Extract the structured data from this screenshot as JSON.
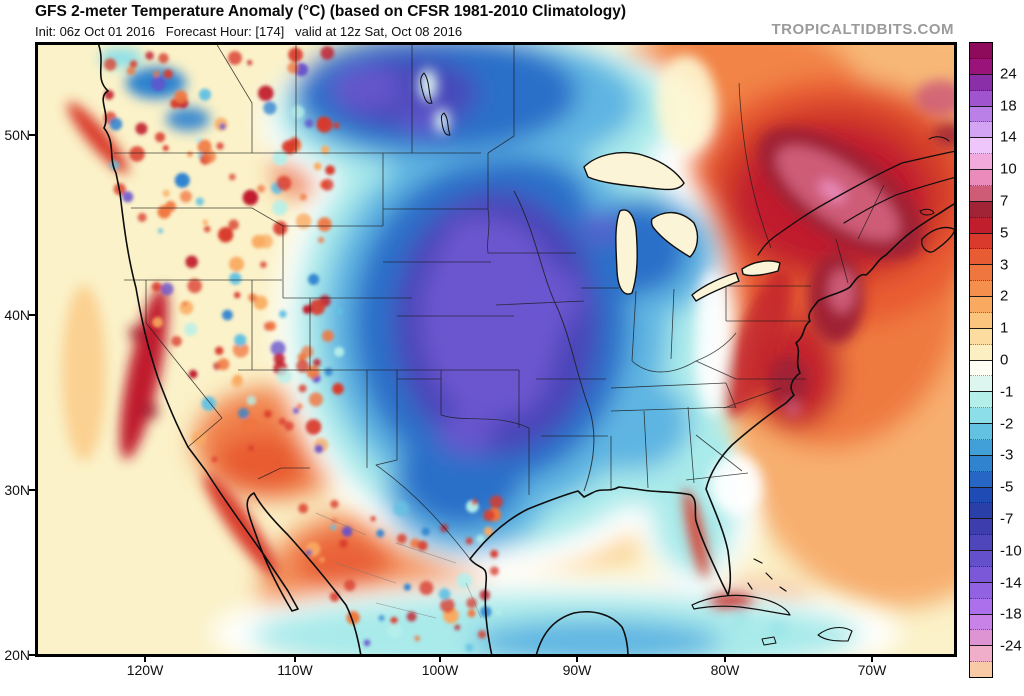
{
  "header": {
    "title": "GFS 2-meter Temperature Anomaly (°C) (based on CFSR 1981-2010 Climatology)",
    "subtitle": "Init: 06z Oct 01 2016   Forecast Hour: [174]   valid at 12z Sat, Oct 08 2016",
    "watermark": "TROPICALTIDBITS.COM"
  },
  "map": {
    "lat_labels": [
      "50N",
      "40N",
      "30N",
      "20N"
    ],
    "lon_labels": [
      "120W",
      "110W",
      "100W",
      "90W",
      "80W",
      "70W"
    ]
  },
  "chart_data": {
    "type": "heatmap",
    "subtype": "filled-contour-weather-map",
    "title": "GFS 2-meter Temperature Anomaly (°C) (based on CFSR 1981-2010 Climatology)",
    "model": "GFS",
    "variable": "2-meter temperature anomaly",
    "units": "°C",
    "climatology": "CFSR 1981-2010",
    "init": "06z Oct 01 2016",
    "forecast_hour": 174,
    "valid": "12z Sat, Oct 08 2016",
    "region": "CONUS / North America (approx 20N-55N, 128W-66W)",
    "lat_ticks": [
      "50N",
      "40N",
      "30N",
      "20N"
    ],
    "lon_ticks": [
      "120W",
      "110W",
      "100W",
      "90W",
      "80W",
      "70W"
    ],
    "colorbar": {
      "orientation": "vertical-right",
      "range_celsius": [
        -30,
        30
      ],
      "tick_labels": [
        "24",
        "18",
        "14",
        "10",
        "7",
        "5",
        "3",
        "2",
        "1",
        "0",
        "-1",
        "-2",
        "-3",
        "-5",
        "-7",
        "-10",
        "-14",
        "-18",
        "-24"
      ],
      "colors_top_to_bottom": [
        "#8E0B5C",
        "#99137B",
        "#8B2FA8",
        "#A055CF",
        "#BB7FE8",
        "#D4A4F4",
        "#EFC6FB",
        "#F2A9DB",
        "#EA8BBB",
        "#CE5C77",
        "#A02336",
        "#C01E2D",
        "#D93A2B",
        "#E85C33",
        "#F0763F",
        "#F58F4E",
        "#F9AA60",
        "#FBC57E",
        "#FDDC9F",
        "#FCF0C2",
        "#FEFEF4",
        "#DDF7F0",
        "#B5EFEA",
        "#8CDFE8",
        "#63C1E2",
        "#41A0D8",
        "#2F83CF",
        "#2766C4",
        "#1F4BB4",
        "#2A3FA8",
        "#3D3DAE",
        "#5046BC",
        "#6450CB",
        "#7A58D8",
        "#9163E3",
        "#AC70EC",
        "#C983E8",
        "#DE93D3",
        "#F1AECB",
        "#F8CBA6"
      ]
    },
    "anomaly_features": [
      {
        "area": "Central Plains / Upper Midwest (NE,KS,OK,MO,IA,MN)",
        "anomaly_c": "-7 to -14 (coldest core)"
      },
      {
        "area": "Great Lakes / Wisconsin / Michigan",
        "anomaly_c": "-5 to -10"
      },
      {
        "area": "Texas and lower Mississippi Valley",
        "anomaly_c": "-3 to -7"
      },
      {
        "area": "Canadian Prairies (top of map)",
        "anomaly_c": "-5 to -12"
      },
      {
        "area": "Quebec / St. Lawrence Valley",
        "anomaly_c": "+7 to +10 (warmest core)"
      },
      {
        "area": "New England and Mid-Atlantic coast",
        "anomaly_c": "+5 to +8"
      },
      {
        "area": "Virginia / North Carolina",
        "anomaly_c": "+5 to +7"
      },
      {
        "area": "Western Atlantic offshore",
        "anomaly_c": "+2 to +5"
      },
      {
        "area": "California coast and Desert Southwest",
        "anomaly_c": "+3 to +7"
      },
      {
        "area": "Pacific Northwest / Rockies",
        "anomaly_c": "noisy mix -3 to +5"
      },
      {
        "area": "Florida peninsula / Southeast coast",
        "anomaly_c": "-1 to -2"
      },
      {
        "area": "Eastern Pacific off Mexico",
        "anomaly_c": "-1 to -3"
      },
      {
        "area": "Open oceans background",
        "anomaly_c": "0 to +2"
      }
    ]
  }
}
